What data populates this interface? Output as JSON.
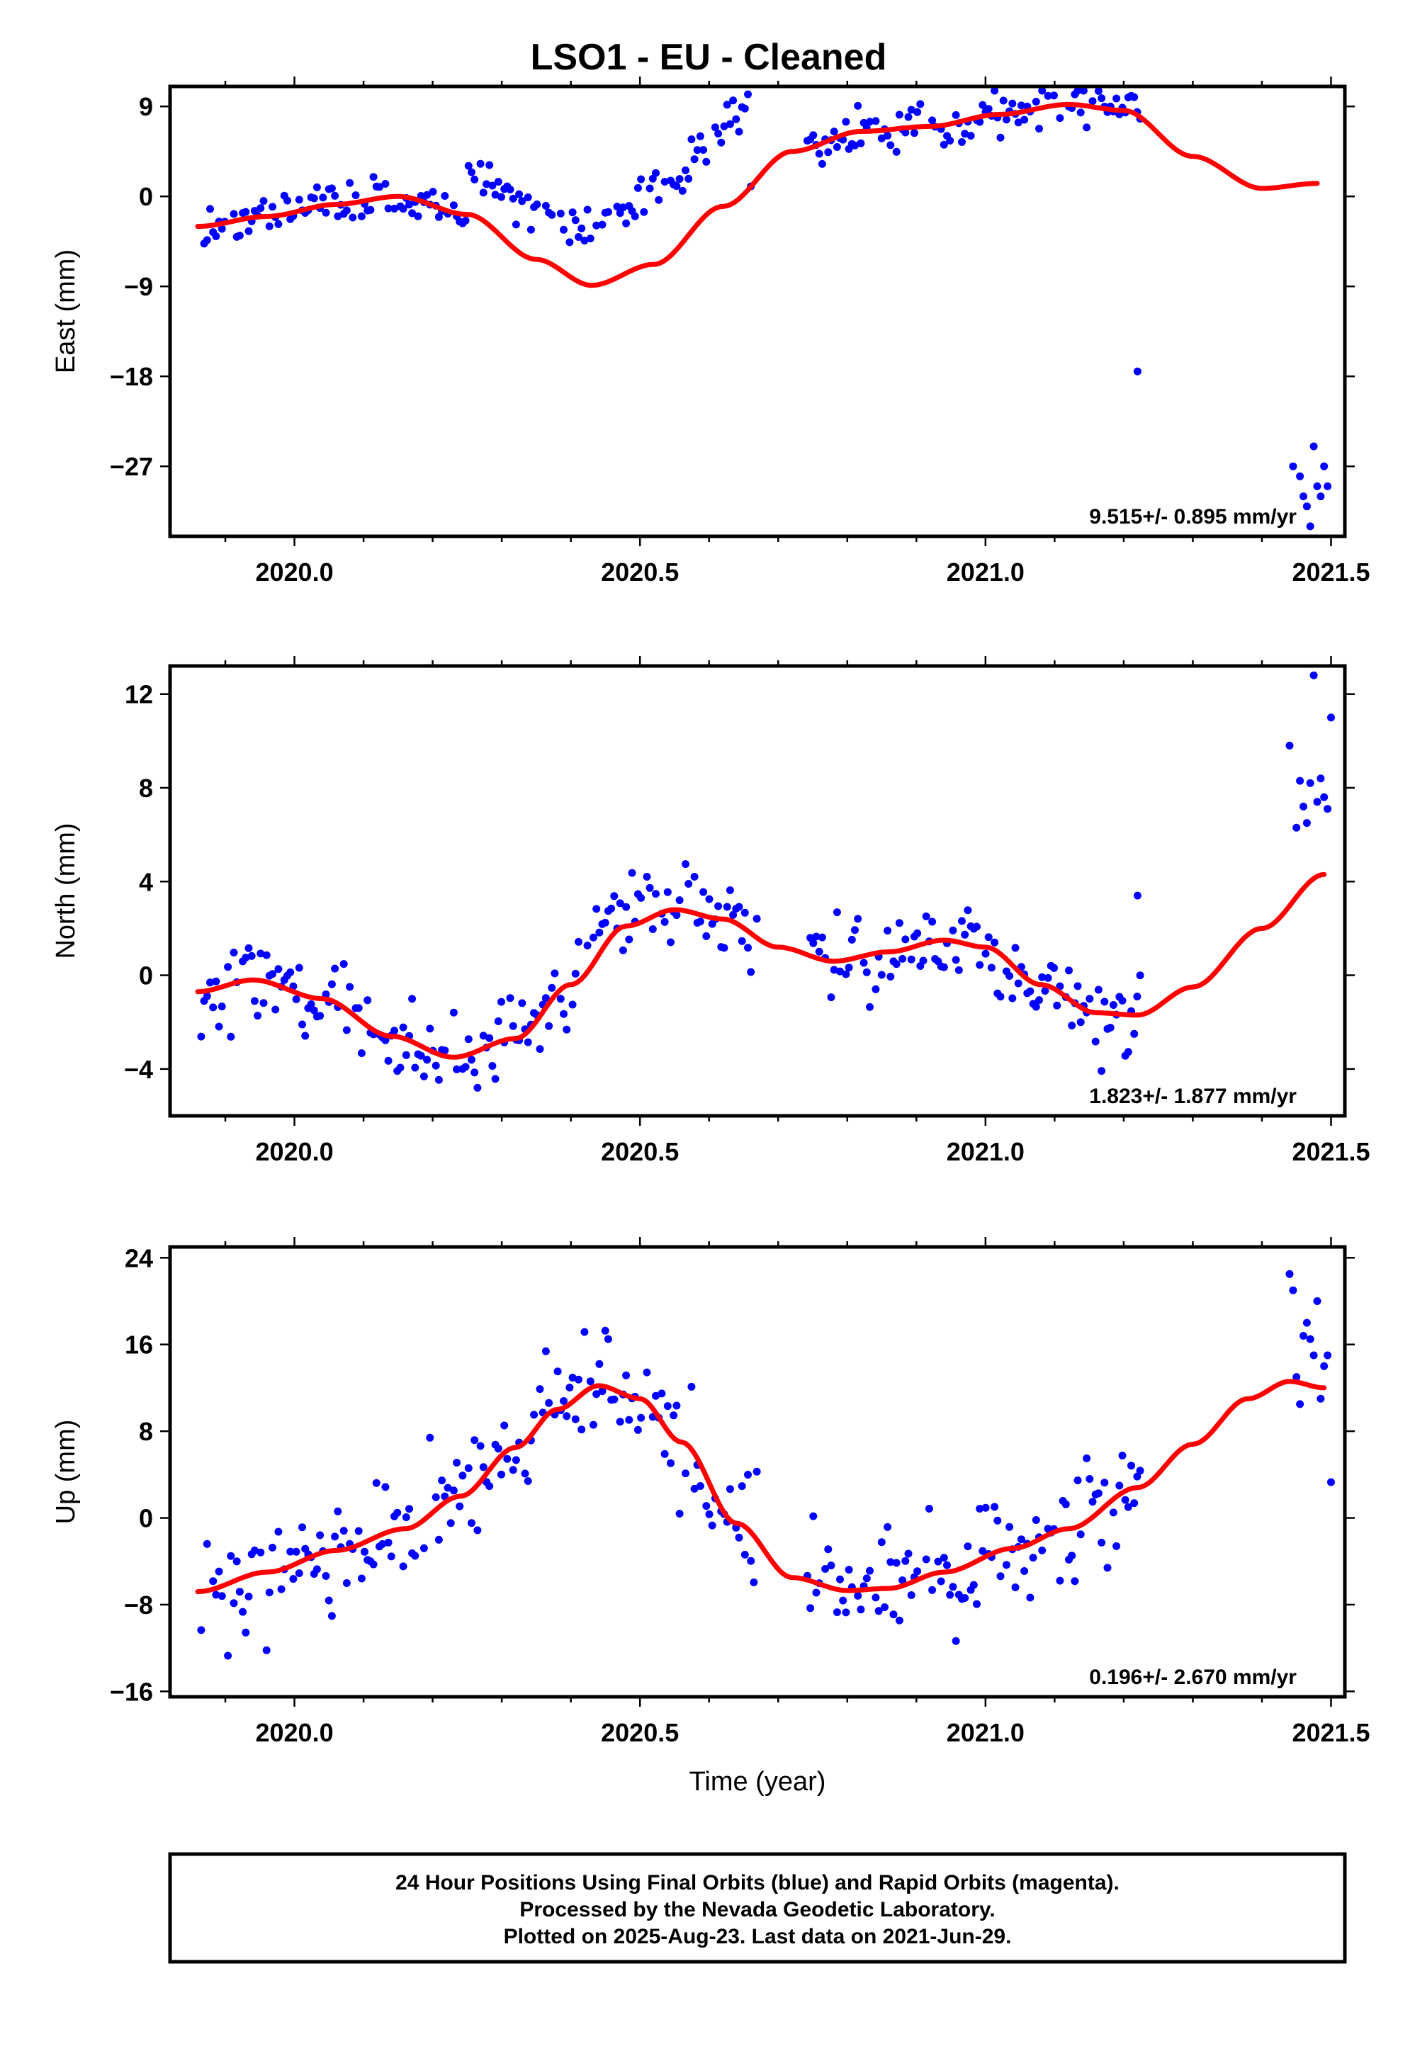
{
  "title": "LSO1  - EU - Cleaned",
  "footer": {
    "line1": "24 Hour Positions Using Final Orbits (blue) and Rapid Orbits (magenta).",
    "line2": "Processed by the Nevada Geodetic Laboratory.",
    "line3": "Plotted on 2025-Aug-23. Last data on 2021-Jun-29."
  },
  "colors": {
    "final_orbits": "#0000ff",
    "fit": "#ff0000",
    "frame": "#000000"
  },
  "chart_data": [
    {
      "type": "scatter",
      "ylabel": "East (mm)",
      "xlim": [
        2019.82,
        2021.52
      ],
      "ylim": [
        -34,
        11
      ],
      "yticks": [
        9,
        0,
        -9,
        -18,
        -27
      ],
      "xticks": [
        2020.0,
        2020.5,
        2021.0,
        2021.5
      ],
      "xtick_labels": [
        "2020.0",
        "2020.5",
        "2021.0",
        "2021.5"
      ],
      "rate": "9.515+/- 0.895 mm/yr",
      "fit": {
        "x": [
          2019.86,
          2019.96,
          2020.06,
          2020.15,
          2020.25,
          2020.35,
          2020.43,
          2020.52,
          2020.62,
          2020.72,
          2020.82,
          2020.92,
          2021.02,
          2021.12,
          2021.2,
          2021.3,
          2021.4,
          2021.48
        ],
        "y": [
          -3.0,
          -2.0,
          -0.8,
          0.0,
          -1.8,
          -6.3,
          -8.9,
          -6.8,
          -1.0,
          4.5,
          6.5,
          7.0,
          8.2,
          9.2,
          8.6,
          4.0,
          0.8,
          1.3
        ]
      },
      "outliers": [
        {
          "x": 2021.22,
          "y": -17.5
        },
        {
          "x": 2021.445,
          "y": -27
        },
        {
          "x": 2021.455,
          "y": -28
        },
        {
          "x": 2021.46,
          "y": -30
        },
        {
          "x": 2021.465,
          "y": -31
        },
        {
          "x": 2021.47,
          "y": -33
        },
        {
          "x": 2021.475,
          "y": -25
        },
        {
          "x": 2021.48,
          "y": -29
        },
        {
          "x": 2021.485,
          "y": -30
        },
        {
          "x": 2021.49,
          "y": -27
        },
        {
          "x": 2021.495,
          "y": -29
        }
      ]
    },
    {
      "type": "scatter",
      "ylabel": "North (mm)",
      "xlim": [
        2019.82,
        2021.52
      ],
      "ylim": [
        -6,
        13.2
      ],
      "yticks": [
        12,
        8,
        4,
        0,
        -4
      ],
      "xticks": [
        2020.0,
        2020.5,
        2021.0,
        2021.5
      ],
      "xtick_labels": [
        "2020.0",
        "2020.5",
        "2021.0",
        "2021.5"
      ],
      "rate": "1.823+/- 1.877 mm/yr",
      "fit": {
        "x": [
          2019.86,
          2019.94,
          2020.04,
          2020.14,
          2020.23,
          2020.32,
          2020.4,
          2020.48,
          2020.55,
          2020.62,
          2020.7,
          2020.78,
          2020.86,
          2020.94,
          2021.0,
          2021.08,
          2021.16,
          2021.22,
          2021.3,
          2021.4,
          2021.49
        ],
        "y": [
          -0.7,
          -0.2,
          -1.0,
          -2.6,
          -3.5,
          -2.7,
          -0.4,
          2.1,
          2.8,
          2.4,
          1.2,
          0.6,
          1.0,
          1.5,
          1.2,
          -0.4,
          -1.6,
          -1.7,
          -0.5,
          2.0,
          4.3
        ]
      },
      "outliers": [
        {
          "x": 2021.22,
          "y": 3.4
        },
        {
          "x": 2021.44,
          "y": 9.8
        },
        {
          "x": 2021.45,
          "y": 6.3
        },
        {
          "x": 2021.455,
          "y": 8.3
        },
        {
          "x": 2021.46,
          "y": 7.2
        },
        {
          "x": 2021.465,
          "y": 6.5
        },
        {
          "x": 2021.47,
          "y": 8.2
        },
        {
          "x": 2021.475,
          "y": 12.8
        },
        {
          "x": 2021.48,
          "y": 7.4
        },
        {
          "x": 2021.485,
          "y": 8.4
        },
        {
          "x": 2021.49,
          "y": 7.6
        },
        {
          "x": 2021.495,
          "y": 7.1
        },
        {
          "x": 2021.5,
          "y": 11
        }
      ]
    },
    {
      "type": "scatter",
      "ylabel": "Up (mm)",
      "xlabel": "Time (year)",
      "xlim": [
        2019.82,
        2021.52
      ],
      "ylim": [
        -16.5,
        25
      ],
      "yticks": [
        24,
        16,
        8,
        0,
        -8,
        -16
      ],
      "xticks": [
        2020.0,
        2020.5,
        2021.0,
        2021.5
      ],
      "xtick_labels": [
        "2020.0",
        "2020.5",
        "2021.0",
        "2021.5"
      ],
      "rate": "0.196+/- 2.670 mm/yr",
      "fit": {
        "x": [
          2019.86,
          2019.96,
          2020.06,
          2020.16,
          2020.24,
          2020.32,
          2020.38,
          2020.44,
          2020.5,
          2020.56,
          2020.64,
          2020.72,
          2020.8,
          2020.86,
          2020.94,
          2021.04,
          2021.12,
          2021.22,
          2021.3,
          2021.38,
          2021.44,
          2021.49
        ],
        "y": [
          -6.8,
          -5.0,
          -3.0,
          -1.0,
          2.0,
          6.5,
          10.0,
          12.2,
          11.0,
          7.0,
          -0.5,
          -5.5,
          -6.7,
          -6.5,
          -5.0,
          -2.8,
          -1.0,
          2.8,
          6.8,
          11.0,
          12.6,
          12.0
        ]
      },
      "outliers": [
        {
          "x": 2021.44,
          "y": 22.5
        },
        {
          "x": 2021.445,
          "y": 21
        },
        {
          "x": 2021.45,
          "y": 13
        },
        {
          "x": 2021.455,
          "y": 10.5
        },
        {
          "x": 2021.46,
          "y": 16.8
        },
        {
          "x": 2021.465,
          "y": 18
        },
        {
          "x": 2021.47,
          "y": 16.5
        },
        {
          "x": 2021.475,
          "y": 15
        },
        {
          "x": 2021.48,
          "y": 20
        },
        {
          "x": 2021.485,
          "y": 11
        },
        {
          "x": 2021.49,
          "y": 14
        },
        {
          "x": 2021.495,
          "y": 15
        },
        {
          "x": 2021.5,
          "y": 3.3
        }
      ]
    }
  ]
}
